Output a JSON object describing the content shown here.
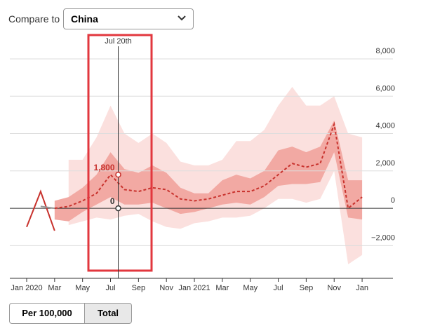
{
  "controls": {
    "compare_label": "Compare to",
    "compare_value": "China",
    "buttons": [
      "Per 100,000",
      "Total"
    ]
  },
  "chart_data": {
    "type": "line",
    "x": [
      "2020-01",
      "2020-02",
      "2020-03",
      "2020-04",
      "2020-05",
      "2020-06",
      "2020-07",
      "2020-08",
      "2020-09",
      "2020-10",
      "2020-11",
      "2020-12",
      "2021-01",
      "2021-02",
      "2021-03",
      "2021-04",
      "2021-05",
      "2021-06",
      "2021-07",
      "2021-08",
      "2021-09",
      "2021-10",
      "2021-11",
      "2021-12",
      "2022-01"
    ],
    "series": [
      {
        "color": "#c8322d",
        "dashed": false,
        "values": [
          -1000,
          900,
          -1200,
          null,
          null,
          null,
          null,
          null,
          null,
          null,
          null,
          null,
          null,
          null,
          null,
          null,
          null,
          null,
          null,
          null,
          null,
          null,
          null,
          null,
          null
        ]
      },
      {
        "color": "#999999",
        "dashed": false,
        "values": [
          null,
          100,
          0,
          null,
          null,
          null,
          null,
          null,
          null,
          null,
          null,
          null,
          null,
          null,
          null,
          null,
          null,
          null,
          null,
          null,
          null,
          null,
          null,
          null,
          null
        ]
      },
      {
        "color": "#c8322d",
        "dashed": true,
        "values": [
          null,
          null,
          0,
          100,
          400,
          800,
          1800,
          1000,
          900,
          1100,
          1000,
          500,
          400,
          500,
          700,
          900,
          900,
          1200,
          1800,
          2400,
          2200,
          2400,
          4500,
          0,
          600
        ]
      }
    ],
    "bands": [
      {
        "color": "#fbe0de",
        "lower": [
          null,
          null,
          null,
          -900,
          -700,
          -500,
          -600,
          -400,
          -300,
          -700,
          -1000,
          -1100,
          -800,
          -700,
          -500,
          -500,
          -400,
          0,
          500,
          500,
          300,
          500,
          2000,
          -3000,
          -2500
        ],
        "upper": [
          null,
          null,
          null,
          2600,
          2600,
          3800,
          5500,
          4000,
          3500,
          4000,
          3500,
          2500,
          2300,
          2300,
          2600,
          3600,
          3600,
          4200,
          5500,
          6500,
          5500,
          5500,
          6000,
          4000,
          3800
        ]
      },
      {
        "color": "#f2a9a3",
        "lower": [
          null,
          null,
          -600,
          -700,
          -200,
          200,
          600,
          200,
          200,
          300,
          0,
          -300,
          -200,
          0,
          200,
          300,
          200,
          600,
          1200,
          1300,
          1300,
          1400,
          3000,
          -500,
          -600
        ],
        "upper": [
          null,
          null,
          400,
          600,
          1100,
          1800,
          3000,
          2100,
          1900,
          2300,
          1900,
          1100,
          800,
          800,
          1500,
          1800,
          1600,
          2000,
          3100,
          3300,
          3000,
          3300,
          4700,
          1500,
          1500
        ]
      }
    ],
    "ylim": [
      -3300,
      8900
    ],
    "yticks": [
      {
        "value": -2000,
        "label": "−2,000"
      },
      0,
      {
        "value": 2000,
        "label": "2,000"
      },
      {
        "value": 4000,
        "label": "4,000"
      },
      {
        "value": 6000,
        "label": "6,000"
      },
      {
        "value": 8000,
        "label": "8,000"
      }
    ],
    "xticks": [
      {
        "value": "2020-01",
        "label": "Jan 2020"
      },
      {
        "value": "2020-03",
        "label": "Mar"
      },
      {
        "value": "2020-05",
        "label": "May"
      },
      {
        "value": "2020-07",
        "label": "Jul"
      },
      {
        "value": "2020-09",
        "label": "Sep"
      },
      {
        "value": "2020-11",
        "label": "Nov"
      },
      {
        "value": "2021-01",
        "label": "Jan 2021"
      },
      {
        "value": "2021-03",
        "label": "Mar"
      },
      {
        "value": "2021-05",
        "label": "May"
      },
      {
        "value": "2021-07",
        "label": "Jul"
      },
      {
        "value": "2021-09",
        "label": "Sep"
      },
      {
        "value": "2021-11",
        "label": "Nov"
      },
      {
        "value": "2022-01",
        "label": "Jan"
      }
    ],
    "grid": true,
    "marker": {
      "label": "Jul 20th",
      "x": "2020-07",
      "points": [
        {
          "value": 1800,
          "label": "1,800",
          "color": "#c8322d"
        },
        {
          "value": 0,
          "color": "#333333"
        }
      ]
    }
  }
}
